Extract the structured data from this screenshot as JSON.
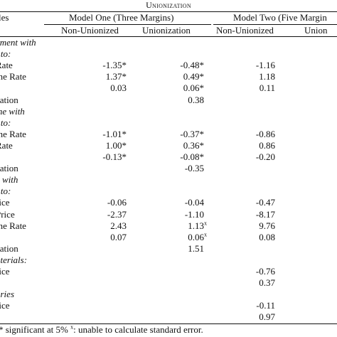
{
  "title": "Unionization",
  "header": {
    "left_label": "les",
    "model_one": "Model One (Three Margins)",
    "model_two": "Model Two (Five Margin",
    "sub": [
      "Non-Unionized",
      "Unionization",
      "Non-Unionized",
      "Union"
    ]
  },
  "rows": [
    {
      "label": "yment with",
      "italic": true,
      "v": [
        "",
        "",
        "",
        ""
      ]
    },
    {
      "label": "t to:",
      "italic": true,
      "v": [
        "",
        "",
        "",
        ""
      ]
    },
    {
      "label": "Rate",
      "italic": false,
      "v": [
        "-1.35*",
        "-0.48*",
        "-1.16",
        ""
      ]
    },
    {
      "label": "me Rate",
      "italic": false,
      "v": [
        "1.37*",
        "0.49*",
        "1.18",
        ""
      ]
    },
    {
      "label": "t",
      "italic": false,
      "v": [
        "0.03",
        "0.06*",
        "0.11",
        ""
      ]
    },
    {
      "label": "zation",
      "italic": false,
      "v": [
        "",
        "0.38",
        "",
        ""
      ]
    },
    {
      "label": "me with",
      "italic": true,
      "v": [
        "",
        "",
        "",
        ""
      ]
    },
    {
      "label": "t to:",
      "italic": true,
      "v": [
        "",
        "",
        "",
        ""
      ]
    },
    {
      "label": "me Rate",
      "italic": false,
      "v": [
        "-1.01*",
        "-0.37*",
        "-0.86",
        ""
      ]
    },
    {
      "label": "Rate",
      "italic": false,
      "v": [
        "1.00*",
        "0.36*",
        "0.86",
        ""
      ]
    },
    {
      "label": "t",
      "italic": false,
      "v": [
        "-0.13*",
        "-0.08*",
        "-0.20",
        ""
      ]
    },
    {
      "label": "zation",
      "italic": false,
      "v": [
        "",
        "-0.35",
        "",
        ""
      ]
    },
    {
      "label": "v with",
      "italic": true,
      "v": [
        "",
        "",
        "",
        ""
      ]
    },
    {
      "label": "t to:",
      "italic": true,
      "v": [
        "",
        "",
        "",
        ""
      ]
    },
    {
      "label": "rice",
      "italic": false,
      "v": [
        "-0.06",
        "-0.04",
        "-0.47",
        ""
      ]
    },
    {
      "label": "Price",
      "italic": false,
      "v": [
        "-2.37",
        "-1.10",
        "-8.17",
        ""
      ]
    },
    {
      "label": "me Rate",
      "italic": false,
      "v": [
        "2.43",
        "1.13",
        "9.76",
        ""
      ],
      "sup": [
        "",
        "x",
        "",
        ""
      ]
    },
    {
      "label": "t",
      "italic": false,
      "v": [
        "0.07",
        "0.06",
        "0.08",
        ""
      ],
      "sup": [
        "",
        "x",
        "",
        ""
      ]
    },
    {
      "label": "zation",
      "italic": false,
      "v": [
        "",
        "1.51",
        "",
        ""
      ]
    },
    {
      "label": "aterials:",
      "italic": true,
      "v": [
        "",
        "",
        "",
        ""
      ]
    },
    {
      "label": "rice",
      "italic": false,
      "v": [
        "",
        "",
        "-0.76",
        ""
      ]
    },
    {
      "label": "t",
      "italic": false,
      "v": [
        "",
        "",
        "0.37",
        ""
      ]
    },
    {
      "label": "ories",
      "italic": true,
      "v": [
        "",
        "",
        "",
        ""
      ]
    },
    {
      "label": "rice",
      "italic": false,
      "v": [
        "",
        "",
        "-0.11",
        ""
      ]
    },
    {
      "label": "t",
      "italic": false,
      "v": [
        "",
        "",
        "0.97",
        ""
      ]
    }
  ],
  "footnote": {
    "star": "*",
    "text1": " significant at 5% ",
    "x": "x",
    "text2": ": unable to calculate standard error."
  }
}
